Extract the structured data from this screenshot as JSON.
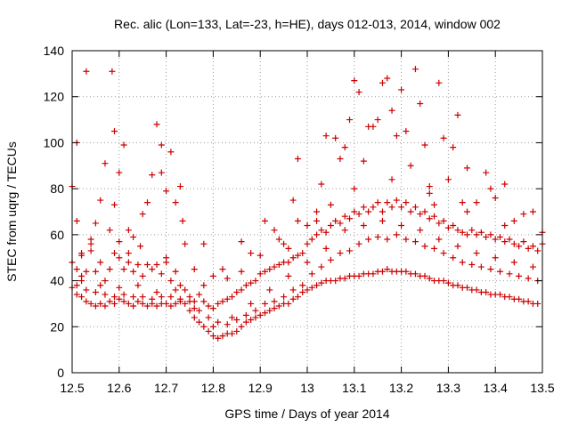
{
  "chart_data": {
    "type": "scatter",
    "title": "Rec. alic (Lon=133, Lat=-23, h=HE), days 012-013, 2014, window 002",
    "xlabel": "GPS time / Days of year 2014",
    "ylabel": "STEC from uqrg / TECUs",
    "xlim": [
      12.5,
      13.5
    ],
    "ylim": [
      0,
      140
    ],
    "xticks": [
      "12.5",
      "12.6",
      "12.7",
      "12.8",
      "12.9",
      "13",
      "13.1",
      "13.2",
      "13.3",
      "13.4",
      "13.5"
    ],
    "yticks": [
      "0",
      "20",
      "40",
      "60",
      "80",
      "100",
      "120",
      "140"
    ],
    "grid": true,
    "marker": "+",
    "color": "#cc0000",
    "points": [
      [
        12.5,
        81
      ],
      [
        12.51,
        100
      ],
      [
        12.51,
        66
      ],
      [
        12.52,
        51
      ],
      [
        12.52,
        42
      ],
      [
        12.53,
        131
      ],
      [
        12.54,
        56
      ],
      [
        12.55,
        65
      ],
      [
        12.56,
        75
      ],
      [
        12.57,
        91
      ],
      [
        12.58,
        62
      ],
      [
        12.585,
        131
      ],
      [
        12.59,
        105
      ],
      [
        12.59,
        73
      ],
      [
        12.6,
        87
      ],
      [
        12.6,
        57
      ],
      [
        12.61,
        99
      ],
      [
        12.62,
        62
      ],
      [
        12.63,
        59
      ],
      [
        12.645,
        55
      ],
      [
        12.65,
        69
      ],
      [
        12.66,
        74
      ],
      [
        12.67,
        86
      ],
      [
        12.68,
        108
      ],
      [
        12.69,
        87
      ],
      [
        12.69,
        99
      ],
      [
        12.7,
        79
      ],
      [
        12.71,
        96
      ],
      [
        12.72,
        74
      ],
      [
        12.73,
        81
      ],
      [
        12.735,
        66
      ],
      [
        12.74,
        56
      ],
      [
        12.76,
        45
      ],
      [
        12.78,
        56
      ],
      [
        12.8,
        42
      ],
      [
        12.82,
        45
      ],
      [
        12.83,
        41
      ],
      [
        12.86,
        57
      ],
      [
        12.88,
        52
      ],
      [
        12.9,
        51
      ],
      [
        12.91,
        66
      ],
      [
        12.93,
        62
      ],
      [
        12.95,
        56
      ],
      [
        12.96,
        54
      ],
      [
        12.97,
        75
      ],
      [
        12.98,
        93
      ],
      [
        12.98,
        66
      ],
      [
        13.0,
        64
      ],
      [
        13.02,
        70
      ],
      [
        13.03,
        82
      ],
      [
        13.04,
        103
      ],
      [
        13.05,
        73
      ],
      [
        13.06,
        102
      ],
      [
        13.07,
        93
      ],
      [
        13.08,
        98
      ],
      [
        13.09,
        110
      ],
      [
        13.1,
        127
      ],
      [
        13.11,
        122
      ],
      [
        13.12,
        92
      ],
      [
        13.13,
        107
      ],
      [
        13.14,
        107
      ],
      [
        13.15,
        110
      ],
      [
        13.16,
        126
      ],
      [
        13.17,
        128
      ],
      [
        13.18,
        114
      ],
      [
        13.19,
        103
      ],
      [
        13.2,
        123
      ],
      [
        13.21,
        105
      ],
      [
        13.22,
        90
      ],
      [
        13.23,
        132
      ],
      [
        13.24,
        117
      ],
      [
        13.25,
        99
      ],
      [
        13.26,
        81
      ],
      [
        13.27,
        73
      ],
      [
        13.28,
        126
      ],
      [
        13.29,
        102
      ],
      [
        13.3,
        84
      ],
      [
        13.31,
        98
      ],
      [
        13.32,
        112
      ],
      [
        13.33,
        74
      ],
      [
        13.34,
        89
      ],
      [
        13.36,
        74
      ],
      [
        13.38,
        87
      ],
      [
        13.39,
        80
      ],
      [
        13.4,
        76
      ],
      [
        13.42,
        82
      ],
      [
        13.44,
        66
      ],
      [
        13.46,
        69
      ],
      [
        13.48,
        70
      ],
      [
        13.5,
        56
      ],
      [
        12.5,
        48
      ],
      [
        12.51,
        45
      ],
      [
        12.52,
        52
      ],
      [
        12.53,
        44
      ],
      [
        12.54,
        53
      ],
      [
        12.55,
        44
      ],
      [
        12.56,
        48
      ],
      [
        12.57,
        40
      ],
      [
        12.58,
        45
      ],
      [
        12.59,
        52
      ],
      [
        12.6,
        50
      ],
      [
        12.61,
        45
      ],
      [
        12.62,
        48
      ],
      [
        12.63,
        44
      ],
      [
        12.64,
        47
      ],
      [
        12.65,
        42
      ],
      [
        12.66,
        47
      ],
      [
        12.67,
        45
      ],
      [
        12.68,
        47
      ],
      [
        12.69,
        43
      ],
      [
        12.7,
        48
      ],
      [
        12.71,
        40
      ],
      [
        12.72,
        44
      ],
      [
        12.73,
        38
      ],
      [
        12.74,
        36
      ],
      [
        12.75,
        33
      ],
      [
        12.76,
        31
      ],
      [
        12.77,
        34
      ],
      [
        12.78,
        31
      ],
      [
        12.79,
        29
      ],
      [
        12.8,
        28
      ],
      [
        12.81,
        30
      ],
      [
        12.82,
        31
      ],
      [
        12.83,
        32
      ],
      [
        12.84,
        33
      ],
      [
        12.85,
        35
      ],
      [
        12.86,
        36
      ],
      [
        12.87,
        38
      ],
      [
        12.88,
        39
      ],
      [
        12.89,
        40
      ],
      [
        12.9,
        43
      ],
      [
        12.91,
        44
      ],
      [
        12.92,
        45
      ],
      [
        12.93,
        46
      ],
      [
        12.94,
        47
      ],
      [
        12.95,
        48
      ],
      [
        12.96,
        48
      ],
      [
        12.97,
        50
      ],
      [
        12.98,
        51
      ],
      [
        12.99,
        52
      ],
      [
        13.0,
        56
      ],
      [
        13.01,
        58
      ],
      [
        13.02,
        60
      ],
      [
        13.03,
        62
      ],
      [
        13.04,
        61
      ],
      [
        13.05,
        64
      ],
      [
        13.06,
        66
      ],
      [
        13.07,
        65
      ],
      [
        13.08,
        68
      ],
      [
        13.09,
        67
      ],
      [
        13.1,
        70
      ],
      [
        13.11,
        69
      ],
      [
        13.12,
        72
      ],
      [
        13.13,
        70
      ],
      [
        13.14,
        72
      ],
      [
        13.15,
        74
      ],
      [
        13.16,
        70
      ],
      [
        13.17,
        74
      ],
      [
        13.18,
        72
      ],
      [
        13.19,
        75
      ],
      [
        13.2,
        72
      ],
      [
        13.21,
        74
      ],
      [
        13.22,
        70
      ],
      [
        13.23,
        72
      ],
      [
        13.24,
        69
      ],
      [
        13.25,
        70
      ],
      [
        13.26,
        67
      ],
      [
        13.27,
        68
      ],
      [
        13.28,
        65
      ],
      [
        13.29,
        66
      ],
      [
        13.3,
        63
      ],
      [
        13.31,
        64
      ],
      [
        13.32,
        62
      ],
      [
        13.33,
        61
      ],
      [
        13.34,
        60
      ],
      [
        13.35,
        62
      ],
      [
        13.36,
        60
      ],
      [
        13.37,
        61
      ],
      [
        13.38,
        59
      ],
      [
        13.39,
        60
      ],
      [
        13.4,
        58
      ],
      [
        13.41,
        59
      ],
      [
        13.42,
        57
      ],
      [
        13.43,
        58
      ],
      [
        13.44,
        56
      ],
      [
        13.45,
        55
      ],
      [
        13.46,
        57
      ],
      [
        13.47,
        54
      ],
      [
        13.48,
        55
      ],
      [
        13.49,
        53
      ],
      [
        12.5,
        37
      ],
      [
        12.51,
        34
      ],
      [
        12.52,
        33
      ],
      [
        12.53,
        31
      ],
      [
        12.54,
        30
      ],
      [
        12.55,
        29
      ],
      [
        12.56,
        30
      ],
      [
        12.57,
        29
      ],
      [
        12.58,
        31
      ],
      [
        12.59,
        30
      ],
      [
        12.6,
        32
      ],
      [
        12.61,
        31
      ],
      [
        12.62,
        30
      ],
      [
        12.63,
        29
      ],
      [
        12.64,
        31
      ],
      [
        12.65,
        30
      ],
      [
        12.66,
        29
      ],
      [
        12.67,
        30
      ],
      [
        12.68,
        29
      ],
      [
        12.69,
        30
      ],
      [
        12.7,
        30
      ],
      [
        12.71,
        29
      ],
      [
        12.72,
        30
      ],
      [
        12.73,
        31
      ],
      [
        12.74,
        30
      ],
      [
        12.75,
        27
      ],
      [
        12.76,
        24
      ],
      [
        12.77,
        22
      ],
      [
        12.78,
        20
      ],
      [
        12.79,
        18
      ],
      [
        12.8,
        16
      ],
      [
        12.81,
        15
      ],
      [
        12.82,
        16
      ],
      [
        12.83,
        17
      ],
      [
        12.84,
        17
      ],
      [
        12.85,
        18
      ],
      [
        12.86,
        20
      ],
      [
        12.87,
        22
      ],
      [
        12.88,
        23
      ],
      [
        12.89,
        24
      ],
      [
        12.9,
        25
      ],
      [
        12.91,
        26
      ],
      [
        12.92,
        27
      ],
      [
        12.93,
        28
      ],
      [
        12.94,
        29
      ],
      [
        12.95,
        30
      ],
      [
        12.96,
        30
      ],
      [
        12.97,
        32
      ],
      [
        12.98,
        33
      ],
      [
        12.99,
        35
      ],
      [
        13.0,
        36
      ],
      [
        13.01,
        37
      ],
      [
        13.02,
        38
      ],
      [
        13.03,
        39
      ],
      [
        13.04,
        40
      ],
      [
        13.05,
        40
      ],
      [
        13.06,
        40
      ],
      [
        13.07,
        41
      ],
      [
        13.08,
        41
      ],
      [
        13.09,
        42
      ],
      [
        13.1,
        42
      ],
      [
        13.11,
        42
      ],
      [
        13.12,
        43
      ],
      [
        13.13,
        43
      ],
      [
        13.14,
        43
      ],
      [
        13.15,
        44
      ],
      [
        13.16,
        44
      ],
      [
        13.17,
        45
      ],
      [
        13.18,
        44
      ],
      [
        13.19,
        44
      ],
      [
        13.2,
        44
      ],
      [
        13.21,
        44
      ],
      [
        13.22,
        43
      ],
      [
        13.23,
        43
      ],
      [
        13.24,
        42
      ],
      [
        13.25,
        42
      ],
      [
        13.26,
        41
      ],
      [
        13.27,
        40
      ],
      [
        13.28,
        40
      ],
      [
        13.29,
        40
      ],
      [
        13.3,
        39
      ],
      [
        13.31,
        38
      ],
      [
        13.32,
        38
      ],
      [
        13.33,
        37
      ],
      [
        13.34,
        37
      ],
      [
        13.35,
        36
      ],
      [
        13.36,
        36
      ],
      [
        13.37,
        35
      ],
      [
        13.38,
        35
      ],
      [
        13.39,
        34
      ],
      [
        13.4,
        34
      ],
      [
        13.41,
        34
      ],
      [
        13.42,
        33
      ],
      [
        13.43,
        33
      ],
      [
        13.44,
        32
      ],
      [
        13.45,
        32
      ],
      [
        13.46,
        31
      ],
      [
        13.47,
        31
      ],
      [
        13.48,
        30
      ],
      [
        13.49,
        30
      ],
      [
        12.51,
        38
      ],
      [
        12.53,
        36
      ],
      [
        12.55,
        35
      ],
      [
        12.57,
        34
      ],
      [
        12.59,
        33
      ],
      [
        12.61,
        34
      ],
      [
        12.63,
        33
      ],
      [
        12.65,
        33
      ],
      [
        12.67,
        32
      ],
      [
        12.69,
        33
      ],
      [
        12.71,
        33
      ],
      [
        12.73,
        32
      ],
      [
        12.75,
        31
      ],
      [
        12.77,
        27
      ],
      [
        12.79,
        24
      ],
      [
        12.81,
        22
      ],
      [
        12.83,
        21
      ],
      [
        12.85,
        23
      ],
      [
        12.87,
        25
      ],
      [
        12.89,
        27
      ],
      [
        12.91,
        30
      ],
      [
        12.93,
        31
      ],
      [
        12.95,
        33
      ],
      [
        12.97,
        36
      ],
      [
        12.99,
        38
      ],
      [
        13.01,
        43
      ],
      [
        13.03,
        46
      ],
      [
        13.05,
        49
      ],
      [
        13.07,
        52
      ],
      [
        13.09,
        53
      ],
      [
        13.11,
        56
      ],
      [
        13.13,
        58
      ],
      [
        13.15,
        59
      ],
      [
        13.17,
        58
      ],
      [
        13.19,
        60
      ],
      [
        13.21,
        58
      ],
      [
        13.23,
        57
      ],
      [
        13.25,
        55
      ],
      [
        13.27,
        54
      ],
      [
        13.29,
        52
      ],
      [
        13.31,
        50
      ],
      [
        13.33,
        48
      ],
      [
        13.35,
        47
      ],
      [
        13.37,
        46
      ],
      [
        13.39,
        45
      ],
      [
        13.41,
        44
      ],
      [
        13.43,
        43
      ],
      [
        13.45,
        42
      ],
      [
        13.47,
        41
      ],
      [
        13.49,
        40
      ],
      [
        12.52,
        40
      ],
      [
        12.56,
        38
      ],
      [
        12.6,
        37
      ],
      [
        12.64,
        38
      ],
      [
        12.68,
        35
      ],
      [
        12.72,
        36
      ],
      [
        12.76,
        28
      ],
      [
        12.8,
        20
      ],
      [
        12.84,
        24
      ],
      [
        12.88,
        30
      ],
      [
        12.92,
        36
      ],
      [
        12.96,
        42
      ],
      [
        13.0,
        48
      ],
      [
        13.04,
        54
      ],
      [
        13.08,
        62
      ],
      [
        13.12,
        64
      ],
      [
        13.16,
        66
      ],
      [
        13.2,
        64
      ],
      [
        13.24,
        62
      ],
      [
        13.28,
        58
      ],
      [
        13.32,
        55
      ],
      [
        13.36,
        52
      ],
      [
        13.4,
        50
      ],
      [
        13.44,
        48
      ],
      [
        13.48,
        46
      ],
      [
        12.54,
        58
      ],
      [
        12.62,
        52
      ],
      [
        12.7,
        50
      ],
      [
        12.78,
        38
      ],
      [
        12.86,
        44
      ],
      [
        12.94,
        58
      ],
      [
        13.02,
        66
      ],
      [
        13.1,
        80
      ],
      [
        13.18,
        84
      ],
      [
        13.26,
        78
      ],
      [
        13.34,
        70
      ],
      [
        13.42,
        64
      ],
      [
        13.5,
        61
      ]
    ]
  }
}
